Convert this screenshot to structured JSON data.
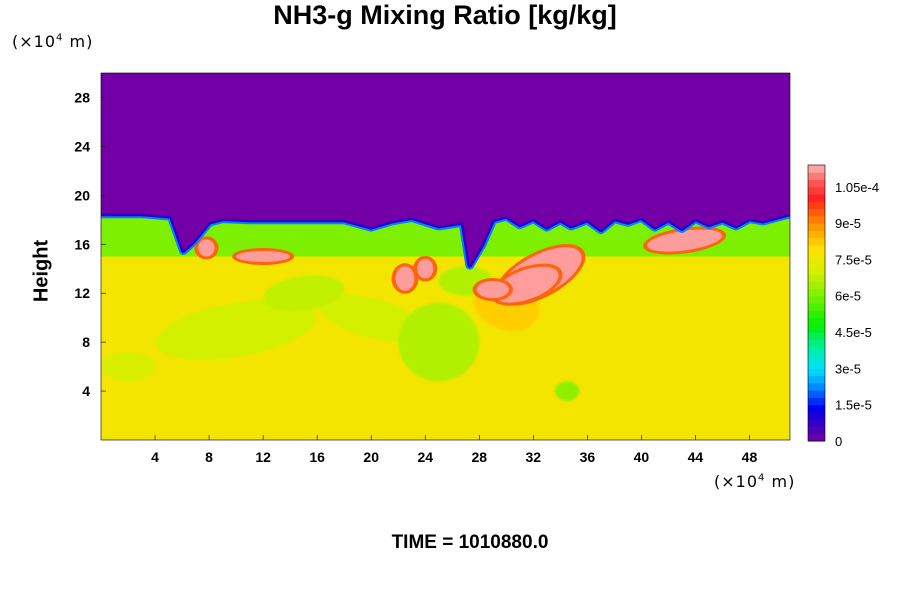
{
  "chart_data": {
    "type": "heatmap",
    "title": "NH3-g Mixing Ratio [kg/kg]",
    "ylabel": "Height",
    "xlabel": "",
    "x_unit": "(×10⁴ m)",
    "y_unit": "(×10⁴ m)",
    "unit_base": "(×10",
    "unit_exp": "4",
    "unit_tail": " m)",
    "xlim": [
      0,
      51
    ],
    "ylim": [
      0,
      30
    ],
    "x_ticks": [
      4,
      8,
      12,
      16,
      20,
      24,
      28,
      32,
      36,
      40,
      44,
      48
    ],
    "y_ticks": [
      4,
      8,
      12,
      16,
      20,
      24,
      28
    ],
    "colorbar": {
      "min": 0,
      "max": 0.000114,
      "tick_values": [
        0,
        1.5e-05,
        3e-05,
        4.5e-05,
        6e-05,
        7.5e-05,
        9e-05,
        0.000105
      ],
      "tick_labels": [
        "0",
        "1.5e-5",
        "3e-5",
        "4.5e-5",
        "6e-5",
        "7.5e-5",
        "9e-5",
        "1.05e-4"
      ]
    },
    "field_summary": {
      "upper_layer_value": 0,
      "upper_layer_range_y": [
        18.5,
        30
      ],
      "middle_layer_value": 6e-05,
      "middle_layer_range_y": [
        15,
        18.5
      ],
      "lower_layer_value": 7.7e-05,
      "lower_layer_range_y": [
        0,
        15
      ],
      "maximum_region_center": [
        32.5,
        13.5
      ],
      "maximum_value": 0.000112
    },
    "time_label": "TIME = 1010880.0"
  }
}
